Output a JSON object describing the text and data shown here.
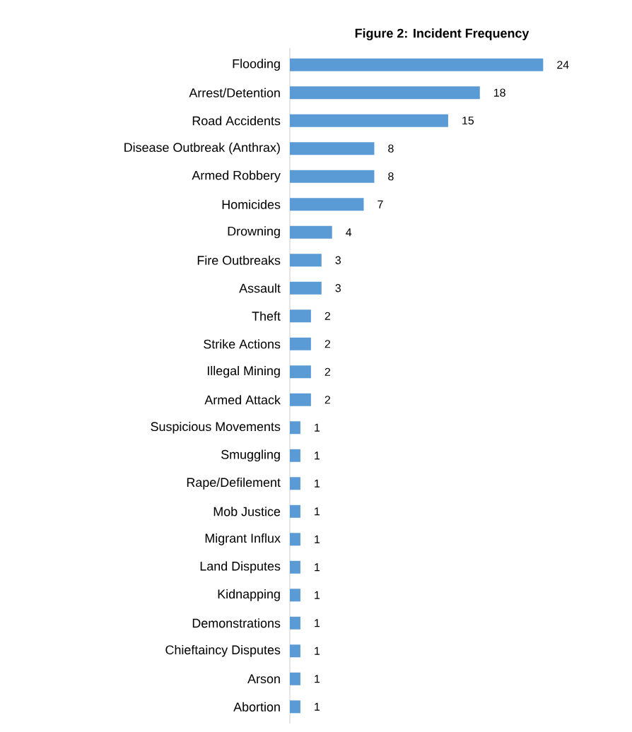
{
  "chart_data": {
    "type": "bar",
    "orientation": "horizontal",
    "title": "Figure 2: Incident Frequency",
    "categories": [
      "Flooding",
      "Arrest/Detention",
      "Road Accidents",
      "Disease Outbreak (Anthrax)",
      "Armed Robbery",
      "Homicides",
      "Drowning",
      "Fire Outbreaks",
      "Assault",
      "Theft",
      "Strike Actions",
      "Illegal Mining",
      "Armed Attack",
      "Suspicious Movements",
      "Smuggling",
      "Rape/Defilement",
      "Mob Justice",
      "Migrant Influx",
      "Land Disputes",
      "Kidnapping",
      "Demonstrations",
      "Chieftaincy Disputes",
      "Arson",
      "Abortion"
    ],
    "values": [
      24,
      18,
      15,
      8,
      8,
      7,
      4,
      3,
      3,
      2,
      2,
      2,
      2,
      1,
      1,
      1,
      1,
      1,
      1,
      1,
      1,
      1,
      1,
      1
    ],
    "color": "#5b9bd5",
    "data_labels": true,
    "tick_labels": "y"
  }
}
